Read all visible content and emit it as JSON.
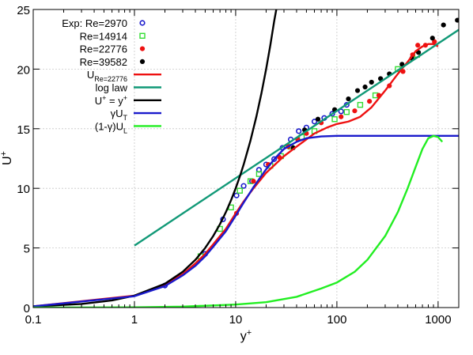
{
  "chart_data": {
    "type": "line",
    "xlabel": "y",
    "xlabel_sup": "+",
    "ylabel": "U",
    "ylabel_sup": "+",
    "xscale": "log",
    "xlim": [
      0.1,
      1600
    ],
    "ylim": [
      0,
      25
    ],
    "xticks": [
      {
        "value": 0.1,
        "label": "0.1"
      },
      {
        "value": 1,
        "label": "1"
      },
      {
        "value": 10,
        "label": "10"
      },
      {
        "value": 100,
        "label": "100"
      },
      {
        "value": 1000,
        "label": "1000"
      }
    ],
    "yticks": [
      {
        "value": 0,
        "label": "0"
      },
      {
        "value": 5,
        "label": "5"
      },
      {
        "value": 10,
        "label": "10"
      },
      {
        "value": 15,
        "label": "15"
      },
      {
        "value": 20,
        "label": "20"
      },
      {
        "value": 25,
        "label": "25"
      }
    ],
    "grid": true,
    "legend_position": "top-left",
    "series": [
      {
        "name": "Exp: Re=2970",
        "kind": "scatter",
        "marker": "open-circle",
        "color": "#1a1acc",
        "x": [
          2.0,
          5.0,
          7.5,
          10.2,
          12.0,
          14.5,
          17.0,
          20.0,
          24.0,
          29.0,
          35.0,
          42.0,
          50.0,
          60.0,
          75.0,
          90.0,
          110.0,
          125.0
        ],
        "y": [
          1.85,
          4.5,
          7.4,
          9.4,
          10.2,
          10.6,
          11.55,
          12.0,
          12.45,
          13.4,
          14.1,
          14.8,
          15.1,
          15.6,
          15.9,
          16.25,
          16.45,
          17.0
        ]
      },
      {
        "name": "Re=14914",
        "kind": "scatter",
        "marker": "open-square",
        "color": "#33dd33",
        "x": [
          4.5,
          7.0,
          9.0,
          11.0,
          14.0,
          17.0,
          22.0,
          28.0,
          35.0,
          45.0,
          60.0,
          95.0,
          125.0,
          170.0,
          240.0,
          400.0,
          620.0
        ],
        "y": [
          4.3,
          6.6,
          8.4,
          9.8,
          10.6,
          11.2,
          11.9,
          12.7,
          13.5,
          14.3,
          14.8,
          15.8,
          16.4,
          17.0,
          17.8,
          20.0,
          21.2
        ]
      },
      {
        "name": "Re=22776",
        "kind": "scatter",
        "marker": "filled-circle",
        "color": "#ee1111",
        "x": [
          10.2,
          15.0,
          21.0,
          27.0,
          33.0,
          41.0,
          50.0,
          70.0,
          110.0,
          150.0,
          210.0,
          260.0,
          330.0,
          450.0,
          560.0,
          630.0,
          750.0,
          920.0
        ],
        "y": [
          7.9,
          10.6,
          12.0,
          12.6,
          13.5,
          14.1,
          14.6,
          15.5,
          16.0,
          16.5,
          17.3,
          17.8,
          18.6,
          19.8,
          21.2,
          22.0,
          22.0,
          22.3
        ]
      },
      {
        "name": "Re=39582",
        "kind": "scatter",
        "marker": "filled-circle",
        "color": "#000000",
        "x": [
          37.0,
          48.0,
          65.0,
          95.0,
          130.0,
          160.0,
          190.0,
          220.0,
          270.0,
          330.0,
          440.0,
          550.0,
          640.0,
          880.0,
          1130.0,
          1550.0
        ],
        "y": [
          13.4,
          14.9,
          15.8,
          16.6,
          17.5,
          18.2,
          18.5,
          18.9,
          19.2,
          19.6,
          20.4,
          20.9,
          21.4,
          22.6,
          23.7,
          24.1
        ]
      },
      {
        "name": "U_Re=22776",
        "kind": "line",
        "color": "#ee1111",
        "x": [
          0.1,
          1.0,
          2.0,
          3.0,
          4.0,
          5.0,
          6.0,
          8.0,
          10.0,
          12.0,
          15.0,
          20.0,
          30.0,
          40.0,
          60.0,
          80.0,
          100.0,
          130.0,
          170.0,
          220.0,
          300.0,
          400.0,
          500.0,
          600.0,
          700.0,
          800.0,
          900.0,
          1000.0
        ],
        "y": [
          0.1,
          1.0,
          1.9,
          2.8,
          3.7,
          4.5,
          5.3,
          6.6,
          7.9,
          8.9,
          10.0,
          11.3,
          12.7,
          13.5,
          14.6,
          15.1,
          15.4,
          15.6,
          16.0,
          16.8,
          18.2,
          19.6,
          20.6,
          21.5,
          21.9,
          22.1,
          22.1,
          21.9
        ]
      },
      {
        "name": "log law",
        "kind": "line",
        "color": "#119977",
        "x": [
          1.0,
          1600.0
        ],
        "y": [
          5.2,
          23.3
        ]
      },
      {
        "name": "U+ = y+",
        "kind": "line",
        "color": "#000000",
        "x": [
          0.1,
          0.3,
          0.6,
          1.0,
          2.0,
          3.0,
          4.0,
          5.0,
          6.0,
          7.0,
          8.0,
          9.0,
          10.0,
          11.0,
          12.0,
          14.0,
          16.0,
          18.0,
          20.0,
          22.0,
          24.0,
          25.2
        ],
        "y": [
          0.1,
          0.3,
          0.6,
          1.0,
          2.0,
          3.0,
          4.0,
          5.0,
          6.0,
          7.0,
          8.0,
          9.0,
          10.0,
          11.0,
          12.0,
          14.0,
          16.0,
          18.0,
          20.0,
          22.0,
          24.0,
          25.0
        ]
      },
      {
        "name": "γU_T",
        "kind": "line",
        "color": "#1a1acc",
        "x": [
          0.1,
          1.0,
          2.0,
          3.0,
          4.0,
          5.0,
          6.0,
          8.0,
          10.0,
          12.0,
          15.0,
          20.0,
          25.0,
          30.0,
          40.0,
          50.0,
          70.0,
          100.0,
          200.0,
          500.0,
          1000.0,
          1600.0
        ],
        "y": [
          0.1,
          0.95,
          1.8,
          2.7,
          3.5,
          4.3,
          5.1,
          6.4,
          7.7,
          8.8,
          10.1,
          11.6,
          12.6,
          13.3,
          13.9,
          14.2,
          14.35,
          14.4,
          14.4,
          14.4,
          14.4,
          14.4
        ]
      },
      {
        "name": "(1-γ)U_L",
        "kind": "line",
        "color": "#22ee22",
        "x": [
          0.1,
          1.0,
          3.0,
          10.0,
          20.0,
          40.0,
          70.0,
          100.0,
          150.0,
          200.0,
          300.0,
          400.0,
          500.0,
          600.0,
          700.0,
          800.0,
          900.0,
          1000.0,
          1100.0
        ],
        "y": [
          0.0,
          0.02,
          0.08,
          0.25,
          0.45,
          0.9,
          1.6,
          2.1,
          3.0,
          4.0,
          6.0,
          8.0,
          10.0,
          11.8,
          13.3,
          14.2,
          14.4,
          14.3,
          13.9
        ]
      }
    ],
    "legend": [
      {
        "label": "Exp: Re=2970",
        "symbol": "open-circle",
        "color": "#1a1acc"
      },
      {
        "label": "Re=14914",
        "symbol": "open-square",
        "color": "#33dd33"
      },
      {
        "label": "Re=22776",
        "symbol": "filled-circle",
        "color": "#ee1111"
      },
      {
        "label": "Re=39582",
        "symbol": "filled-circle",
        "color": "#000000"
      },
      {
        "label": "U",
        "label_sub": "Re=22776",
        "symbol": "line",
        "color": "#ee1111"
      },
      {
        "label": "log law",
        "symbol": "line",
        "color": "#119977"
      },
      {
        "label": "U",
        "label_sup": "+",
        "label_tail": " = y",
        "label_tail_sup": "+",
        "symbol": "line",
        "color": "#000000"
      },
      {
        "label": "γU",
        "label_sub": "T",
        "symbol": "line",
        "color": "#1a1acc"
      },
      {
        "label": "(1-γ)U",
        "label_sub": "L",
        "symbol": "line",
        "color": "#22ee22"
      }
    ]
  }
}
